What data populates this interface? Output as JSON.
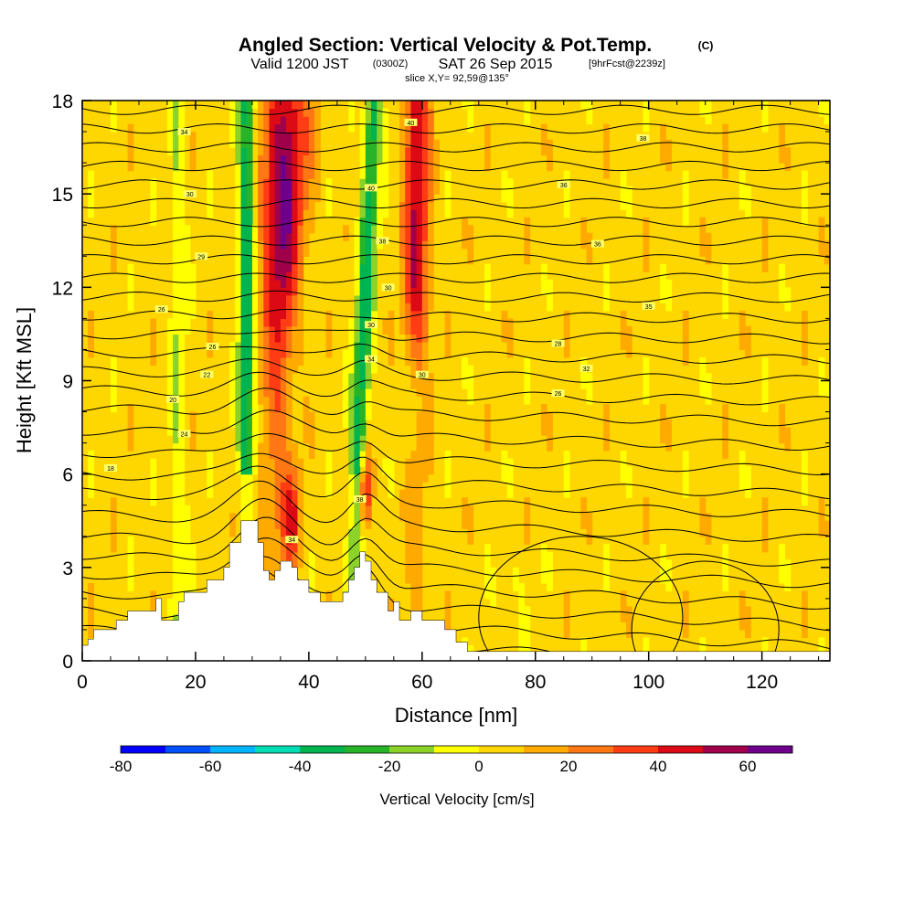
{
  "chart_data": {
    "type": "heatmap",
    "title": "Angled Section: Vertical Velocity & Pot.Temp.",
    "title_unit": "(C)",
    "subtitle_valid": "Valid 1200 JST",
    "subtitle_z": "(0300Z)",
    "subtitle_date": "SAT 26 Sep 2015",
    "subtitle_fcst": "[9hrFcst@2239z]",
    "slice_label": "slice X,Y= 92,59@135°",
    "xlabel": "Distance [nm]",
    "ylabel": "Height [Kft MSL]",
    "xlim": [
      0,
      132
    ],
    "ylim": [
      0,
      18
    ],
    "xticks": [
      "0",
      "20",
      "40",
      "60",
      "80",
      "100",
      "120"
    ],
    "yticks": [
      "0",
      "3",
      "6",
      "9",
      "12",
      "15",
      "18"
    ],
    "colorbar": {
      "label": "Vertical Velocity [cm/s]",
      "range": [
        -80,
        70
      ],
      "step": 10,
      "ticks": [
        "-80",
        "-60",
        "-40",
        "-20",
        "0",
        "20",
        "40",
        "60"
      ],
      "colors": [
        "#0000ff",
        "#0050ff",
        "#00b4ff",
        "#00dcb4",
        "#00b450",
        "#28b428",
        "#8cd228",
        "#ffff00",
        "#ffd700",
        "#ffaa00",
        "#ff7814",
        "#ff3c14",
        "#dc0a14",
        "#a0004b",
        "#6e008c"
      ]
    },
    "updraft_bands": [
      {
        "x": 35,
        "value": 65
      },
      {
        "x": 59,
        "value": 45
      },
      {
        "x": 37,
        "value": 35
      },
      {
        "x": 50,
        "value": 40
      }
    ],
    "downdraft_bands": [
      {
        "x": 29,
        "value": -45
      },
      {
        "x": 50,
        "value": -40
      },
      {
        "x": 17,
        "value": -20
      }
    ],
    "terrain": [
      [
        0,
        0.5
      ],
      [
        1,
        0.5
      ],
      [
        1,
        0.7
      ],
      [
        2,
        0.7
      ],
      [
        2,
        1.0
      ],
      [
        6,
        1.0
      ],
      [
        6,
        1.3
      ],
      [
        8,
        1.3
      ],
      [
        8,
        1.6
      ],
      [
        13,
        1.6
      ],
      [
        13,
        2.0
      ],
      [
        14,
        2.0
      ],
      [
        14,
        1.3
      ],
      [
        17,
        1.3
      ],
      [
        17,
        1.9
      ],
      [
        18,
        1.9
      ],
      [
        18,
        2.2
      ],
      [
        22,
        2.2
      ],
      [
        22,
        2.6
      ],
      [
        25,
        2.6
      ],
      [
        25,
        3.0
      ],
      [
        26,
        3.0
      ],
      [
        26,
        3.8
      ],
      [
        28,
        3.8
      ],
      [
        28,
        4.5
      ],
      [
        31,
        4.5
      ],
      [
        31,
        3.8
      ],
      [
        32,
        3.8
      ],
      [
        32,
        2.9
      ],
      [
        33,
        2.9
      ],
      [
        33,
        2.6
      ],
      [
        34,
        2.6
      ],
      [
        34,
        2.9
      ],
      [
        35,
        2.9
      ],
      [
        35,
        3.2
      ],
      [
        37,
        3.2
      ],
      [
        37,
        3.0
      ],
      [
        38,
        3.0
      ],
      [
        38,
        2.6
      ],
      [
        40,
        2.6
      ],
      [
        40,
        2.2
      ],
      [
        42,
        2.2
      ],
      [
        42,
        1.9
      ],
      [
        46,
        1.9
      ],
      [
        46,
        2.2
      ],
      [
        47,
        2.2
      ],
      [
        47,
        2.6
      ],
      [
        48,
        2.6
      ],
      [
        48,
        3.0
      ],
      [
        49,
        3.0
      ],
      [
        49,
        3.5
      ],
      [
        50,
        3.5
      ],
      [
        50,
        3.2
      ],
      [
        51,
        3.2
      ],
      [
        51,
        2.6
      ],
      [
        52,
        2.6
      ],
      [
        52,
        2.2
      ],
      [
        54,
        2.2
      ],
      [
        54,
        1.6
      ],
      [
        55,
        1.6
      ],
      [
        55,
        1.9
      ],
      [
        56,
        1.9
      ],
      [
        56,
        1.3
      ],
      [
        58,
        1.3
      ],
      [
        58,
        1.6
      ],
      [
        60,
        1.6
      ],
      [
        60,
        1.3
      ],
      [
        64,
        1.3
      ],
      [
        64,
        1.0
      ],
      [
        66,
        1.0
      ],
      [
        66,
        0.6
      ],
      [
        68,
        0.6
      ],
      [
        68,
        0.3
      ],
      [
        132,
        0.3
      ]
    ],
    "isentrope_labels": [
      "18",
      "34",
      "38",
      "34",
      "40",
      "38",
      "30",
      "40",
      "36",
      "29",
      "38",
      "36",
      "26",
      "30",
      "35",
      "26",
      "30",
      "28",
      "22",
      "34",
      "32",
      "20",
      "30",
      "26",
      "24"
    ],
    "isentrope_levels": [
      0.45,
      1.0,
      1.6,
      2.2,
      2.8,
      3.4,
      4.0,
      4.7,
      5.4,
      6.0,
      6.7,
      7.4,
      8.1,
      8.7,
      9.3,
      9.9,
      10.5,
      11.1,
      11.7,
      12.3,
      12.9,
      13.5,
      14.1,
      14.7,
      15.3,
      15.9,
      16.5,
      17.1,
      17.7
    ]
  }
}
